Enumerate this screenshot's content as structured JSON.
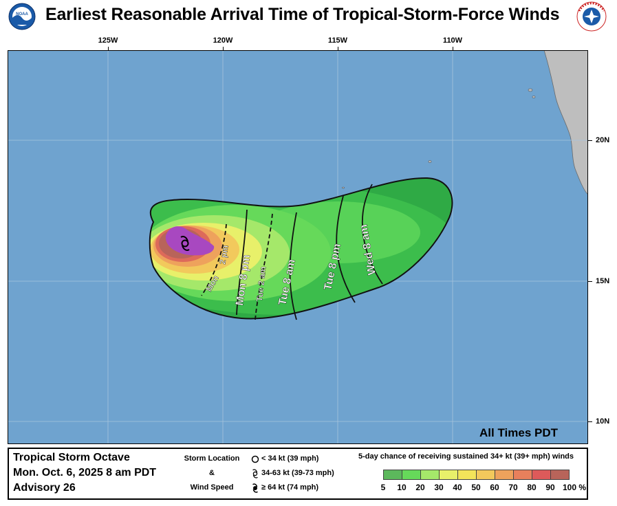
{
  "title": "Earliest Reasonable Arrival Time of Tropical-Storm-Force Winds",
  "logos": {
    "left": "NOAA",
    "right": "NATIONAL WEATHER SERVICE"
  },
  "longitude_labels": [
    "125W",
    "120W",
    "115W",
    "110W"
  ],
  "latitude_labels": [
    "20N",
    "15N",
    "10N"
  ],
  "time_zone_note": "All Times PDT",
  "isochrones": [
    {
      "text": "Mon",
      "style": "solid"
    },
    {
      "text": "2 pm",
      "style": "dashed"
    },
    {
      "text": "Mon 8 pm",
      "style": "solid"
    },
    {
      "text": "Tue 2 am",
      "style": "dashed"
    },
    {
      "text": "Tue 8 am",
      "style": "solid"
    },
    {
      "text": "Tue 8 pm",
      "style": "solid"
    },
    {
      "text": "Wed 8 am",
      "style": "solid"
    }
  ],
  "storm": {
    "name": "Tropical Storm Octave",
    "datetime": "Mon. Oct. 6, 2025  8 am PDT",
    "advisory": "Advisory 26"
  },
  "key": {
    "label_top": "Storm Location",
    "label_mid": "&",
    "label_bottom": "Wind Speed",
    "symbols": [
      {
        "icon": "circle-icon",
        "text": "< 34 kt (39 mph)"
      },
      {
        "icon": "tropical-storm-icon",
        "text": "34-63 kt (39-73 mph)"
      },
      {
        "icon": "hurricane-icon",
        "text": "≥ 64 kt (74 mph)"
      }
    ]
  },
  "probability_legend": {
    "title": "5-day chance of receiving sustained 34+ kt (39+ mph) winds",
    "labels": [
      "5",
      "10",
      "20",
      "30",
      "40",
      "50",
      "60",
      "70",
      "80",
      "90",
      "100 %"
    ],
    "colors": [
      "#5cb85c",
      "#66d95a",
      "#a5e86a",
      "#e8f06a",
      "#f2e45a",
      "#f2c95c",
      "#eea25c",
      "#e8805c",
      "#dd5a5a",
      "#b8645a",
      "#b050c8"
    ]
  },
  "colors": {
    "ocean": "#6fa3cf",
    "land": "#bebebe",
    "grid": "#a8c4dd"
  }
}
